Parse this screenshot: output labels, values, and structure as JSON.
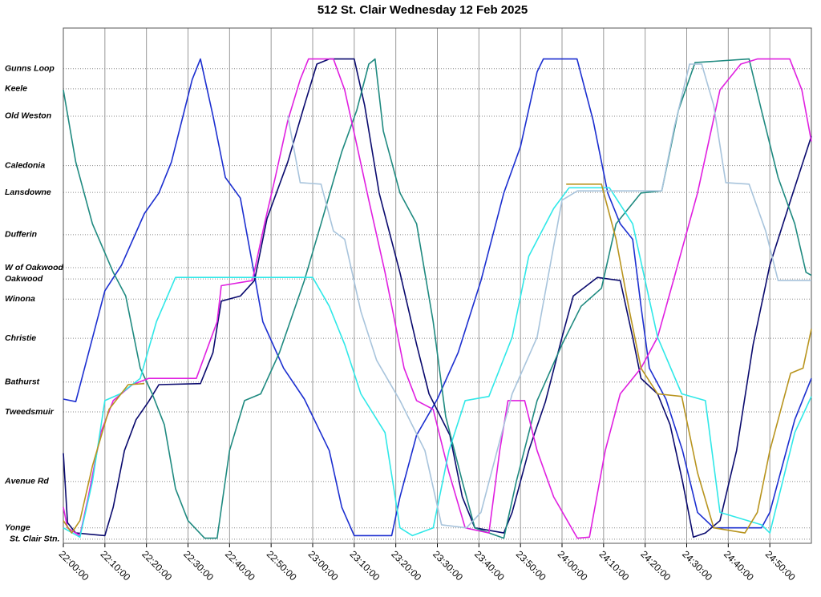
{
  "chart_data": {
    "type": "line",
    "title": "512 St. Clair Wednesday 12 Feb 2025",
    "xlim": [
      0,
      180
    ],
    "xticks": [
      {
        "value": 0,
        "label": "22:00:00"
      },
      {
        "value": 10,
        "label": "22:10:00"
      },
      {
        "value": 20,
        "label": "22:20:00"
      },
      {
        "value": 30,
        "label": "22:30:00"
      },
      {
        "value": 40,
        "label": "22:40:00"
      },
      {
        "value": 50,
        "label": "22:50:00"
      },
      {
        "value": 60,
        "label": "23:00:00"
      },
      {
        "value": 70,
        "label": "23:10:00"
      },
      {
        "value": 80,
        "label": "23:20:00"
      },
      {
        "value": 90,
        "label": "23:30:00"
      },
      {
        "value": 100,
        "label": "23:40:00"
      },
      {
        "value": 110,
        "label": "23:50:00"
      },
      {
        "value": 120,
        "label": "24:00:00"
      },
      {
        "value": 130,
        "label": "24:10:00"
      },
      {
        "value": 140,
        "label": "24:20:00"
      },
      {
        "value": 150,
        "label": "24:30:00"
      },
      {
        "value": 160,
        "label": "24:40:00"
      },
      {
        "value": 170,
        "label": "24:50:00"
      }
    ],
    "ylim": [
      0,
      100
    ],
    "yticks": [
      {
        "value": 92.1,
        "label": "Gunns Loop"
      },
      {
        "value": 88.2,
        "label": "Keele"
      },
      {
        "value": 82.9,
        "label": "Old Weston"
      },
      {
        "value": 73.3,
        "label": "Caledonia"
      },
      {
        "value": 68.1,
        "label": "Lansdowne"
      },
      {
        "value": 59.9,
        "label": "Dufferin"
      },
      {
        "value": 53.5,
        "label": "W of Oakwood"
      },
      {
        "value": 51.3,
        "label": "Oakwood"
      },
      {
        "value": 47.4,
        "label": "Winona"
      },
      {
        "value": 39.8,
        "label": "Christie"
      },
      {
        "value": 31.3,
        "label": "Bathurst"
      },
      {
        "value": 25.5,
        "label": "Tweedsmuir"
      },
      {
        "value": 12.0,
        "label": "Avenue Rd"
      },
      {
        "value": 3.0,
        "label": "Yonge"
      },
      {
        "value": 0.8,
        "label": "St. Clair Stn."
      }
    ],
    "grid": true,
    "series": [
      {
        "color": "#1c2fd0",
        "x": [
          0,
          3,
          10,
          14,
          19.5,
          23,
          26,
          31,
          33,
          36,
          39,
          42.6,
          46,
          48,
          53,
          58,
          64,
          67,
          70,
          79,
          81,
          85,
          90,
          95,
          100.5,
          106,
          110,
          114,
          115.5,
          123.6,
          127.5,
          131,
          134,
          137,
          139,
          141,
          145,
          149,
          152.6,
          156.5,
          168,
          170,
          173,
          176,
          180
        ],
        "values": [
          28,
          27.5,
          49,
          54,
          64,
          68,
          74,
          90,
          94,
          83,
          71,
          67,
          52,
          43,
          34,
          28,
          18,
          7,
          1.5,
          1.5,
          9,
          21,
          28,
          37,
          51,
          68,
          77,
          91.5,
          94,
          94,
          82,
          68,
          62,
          59,
          46,
          34,
          28,
          18,
          6,
          3,
          3,
          6,
          15,
          24,
          32
        ]
      },
      {
        "color": "#0a0a6e",
        "x": [
          0,
          1,
          3,
          10,
          12,
          14.7,
          17.5,
          20.5,
          23,
          33,
          36,
          38,
          42.6,
          46,
          49,
          54,
          58,
          61,
          64,
          70,
          72.5,
          76,
          81,
          85,
          88,
          93,
          96,
          99,
          106,
          108,
          112,
          116,
          120,
          122.7,
          128.5,
          134,
          137,
          139,
          143,
          146,
          149,
          151.6,
          154.5,
          158,
          162,
          166,
          170,
          175,
          180
        ],
        "values": [
          17.5,
          4,
          2,
          1.5,
          7,
          18,
          24,
          27.5,
          30.8,
          31,
          37,
          47,
          48,
          51,
          63,
          74,
          85,
          93,
          94,
          94,
          85,
          68,
          52.5,
          38.6,
          29,
          21,
          9,
          3,
          2,
          6,
          18,
          27.5,
          40,
          48,
          51.6,
          51,
          40,
          32,
          29,
          23,
          12,
          1.2,
          2,
          4.4,
          18,
          38.6,
          54,
          66.6,
          79
        ]
      },
      {
        "color": "#1f8a80",
        "x": [
          0,
          3,
          7,
          12,
          15,
          18.5,
          21.4,
          24.3,
          27,
          30,
          34,
          37,
          40,
          43.6,
          47.5,
          52,
          58,
          62,
          67,
          70.6,
          73.5,
          75,
          77,
          81,
          85,
          89,
          92,
          96,
          99,
          106,
          109,
          114,
          120,
          124.6,
          129.5,
          133,
          139,
          144,
          148,
          152,
          165,
          168,
          172,
          176,
          178.7,
          180
        ],
        "values": [
          88,
          74,
          62,
          52.6,
          48,
          34,
          29,
          23,
          10.6,
          4.4,
          1,
          1,
          18,
          27.7,
          29,
          37,
          51,
          62,
          76,
          84,
          93,
          94,
          80,
          68,
          62,
          43,
          24.6,
          12,
          3,
          1,
          12,
          27.7,
          38.6,
          46,
          49.5,
          62,
          68,
          68.4,
          84,
          93.3,
          94,
          84,
          71,
          62,
          52.6,
          52
        ]
      },
      {
        "color": "#e020e0",
        "x": [
          0,
          1,
          4,
          6,
          9,
          12,
          16.6,
          20.5,
          32,
          35,
          37,
          38,
          45.5,
          48.4,
          51,
          54,
          57,
          59,
          65,
          67.7,
          70.6,
          73.5,
          77.4,
          82,
          85,
          89,
          92.8,
          96.7,
          102.4,
          105,
          107,
          111,
          114,
          118,
          123.7,
          126.6,
          130.4,
          134,
          139,
          143,
          146.8,
          152.6,
          158,
          163,
          167,
          174.8,
          177.7,
          180
        ],
        "values": [
          7,
          3,
          1.5,
          9,
          21.5,
          27.7,
          30.8,
          32,
          32,
          38.6,
          43,
          50,
          51,
          62,
          71,
          82,
          90,
          94,
          94,
          88,
          77.4,
          66.6,
          52.6,
          34,
          27.7,
          26,
          13.7,
          3,
          2,
          18,
          27.7,
          27.7,
          18,
          9,
          1,
          1.2,
          18,
          29,
          34,
          40,
          51,
          68,
          88,
          93,
          94,
          94,
          88,
          78
        ]
      },
      {
        "color": "#30e8e8",
        "x": [
          0,
          4,
          7,
          10,
          13.7,
          18.5,
          22.4,
          27,
          60,
          64,
          67.7,
          71.6,
          77.4,
          81,
          84,
          89,
          92.8,
          96.7,
          102.4,
          108,
          112,
          118,
          121.7,
          131.4,
          137,
          143,
          148.8,
          154.5,
          158,
          168,
          170,
          176,
          180
        ],
        "values": [
          3,
          1.2,
          12,
          27.7,
          29,
          32,
          43,
          51.6,
          51.6,
          46,
          38.6,
          29,
          21.5,
          3,
          1.5,
          3,
          18,
          27.7,
          28.5,
          40,
          55.7,
          65,
          69,
          69,
          62,
          40,
          29,
          27.7,
          6,
          3.6,
          2,
          21.5,
          28.5
        ]
      },
      {
        "color": "#a8c4dc",
        "x": [
          54,
          57,
          62,
          65,
          67.7,
          71.6,
          75.4,
          81,
          87,
          91,
          97,
          100.5,
          104.4,
          108,
          114,
          120,
          123.7,
          144,
          147,
          150.7,
          153.6,
          156.5,
          159.4,
          165,
          169,
          172,
          180
        ],
        "values": [
          83,
          70,
          69.7,
          60.6,
          59,
          45,
          35.5,
          27.7,
          18,
          3.6,
          3,
          6,
          18,
          29,
          40,
          66.6,
          68.4,
          68.4,
          80.7,
          93,
          93,
          85,
          70,
          69.7,
          60.6,
          51,
          51
        ]
      },
      {
        "color": "#b8941e",
        "x": [
          0,
          2,
          4,
          7,
          11,
          15.6,
          19.5,
          60,
          121,
          129.5,
          133,
          136,
          139,
          143,
          148.8,
          152.6,
          156.5,
          164,
          167,
          170,
          175,
          178,
          180
        ],
        "values": [
          4.4,
          2,
          4.4,
          15,
          26,
          30.8,
          31,
          null,
          69.7,
          69.7,
          59,
          46,
          34,
          29,
          28.5,
          13.7,
          3,
          2,
          6,
          18,
          33,
          34,
          41.6
        ]
      }
    ]
  }
}
